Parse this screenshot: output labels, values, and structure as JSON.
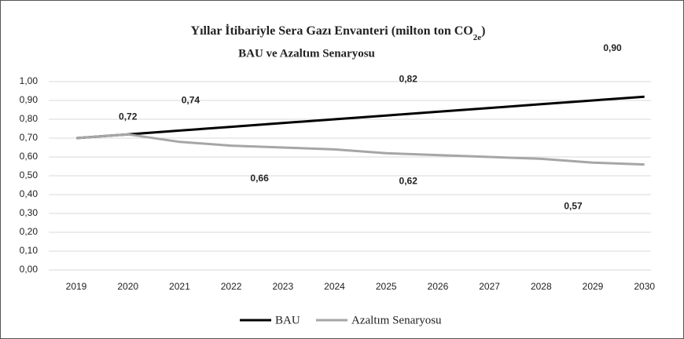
{
  "chart_data": {
    "type": "line",
    "title": [
      "Yıllar İtibariyle Sera Gazı Envanteri  (milton  ton CO",
      "2e",
      ")"
    ],
    "subtitle": "BAU ve Azaltım Senaryosu",
    "categories": [
      "2019",
      "2020",
      "2021",
      "2022",
      "2023",
      "2024",
      "2025",
      "2026",
      "2027",
      "2028",
      "2029",
      "2030"
    ],
    "series": [
      {
        "name": "BAU",
        "color": "#000000",
        "values": [
          0.7,
          0.72,
          0.74,
          0.76,
          0.78,
          0.8,
          0.82,
          0.84,
          0.86,
          0.88,
          0.9,
          0.92
        ],
        "value_labels": [
          null,
          "0,72",
          "0,74",
          null,
          null,
          null,
          "0,82",
          null,
          null,
          null,
          "0,90",
          null
        ]
      },
      {
        "name": "Azaltım Senaryosu",
        "color": "#a6a6a6",
        "values": [
          0.7,
          0.72,
          0.68,
          0.66,
          0.65,
          0.64,
          0.62,
          0.61,
          0.6,
          0.59,
          0.57,
          0.56
        ],
        "value_labels": [
          null,
          null,
          null,
          "0,66",
          null,
          null,
          "0,62",
          null,
          null,
          null,
          "0,57",
          null
        ]
      }
    ],
    "ylim": [
      0,
      1
    ],
    "yticks": [
      {
        "value": 0,
        "label": "0,00"
      },
      {
        "value": 0.1,
        "label": "0,10"
      },
      {
        "value": 0.2,
        "label": "0,20"
      },
      {
        "value": 0.3,
        "label": "0,30"
      },
      {
        "value": 0.4,
        "label": "0,40"
      },
      {
        "value": 0.5,
        "label": "0,50"
      },
      {
        "value": 0.6,
        "label": "0,60"
      },
      {
        "value": 0.7,
        "label": "0,70"
      },
      {
        "value": 0.8,
        "label": "0,80"
      },
      {
        "value": 0.9,
        "label": "0,90"
      },
      {
        "value": 1,
        "label": "1,00"
      }
    ],
    "grid": true,
    "legend": "bottom"
  }
}
